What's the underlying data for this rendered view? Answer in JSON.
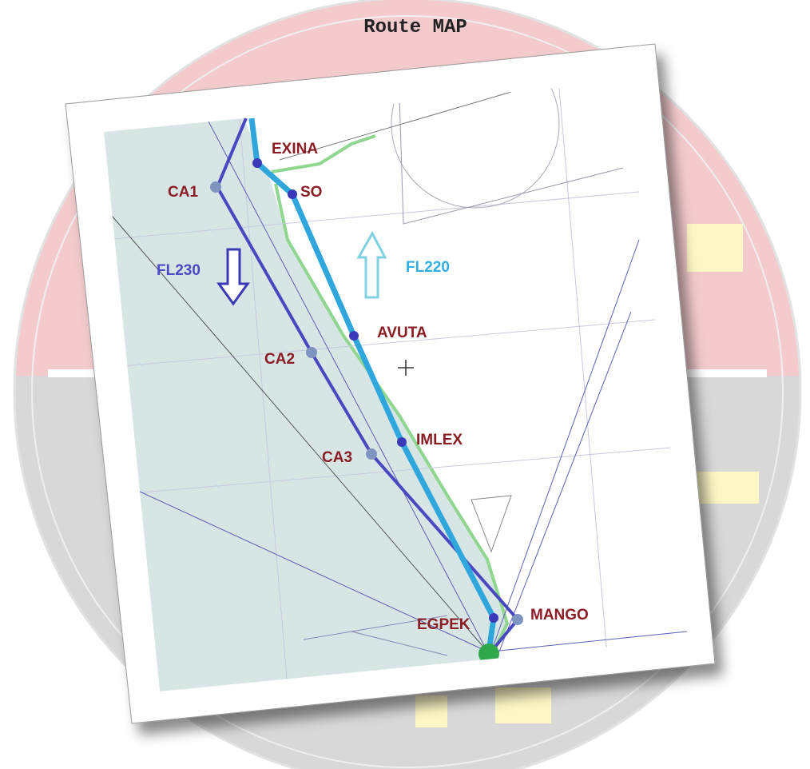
{
  "title": "Route MAP",
  "waypoints": [
    "EXINA",
    "SO",
    "CA1",
    "AVUTA",
    "CA2",
    "IMLEX",
    "CA3",
    "EGPEK",
    "MANGO"
  ],
  "flight_levels": [
    "FL230",
    "FL220"
  ]
}
